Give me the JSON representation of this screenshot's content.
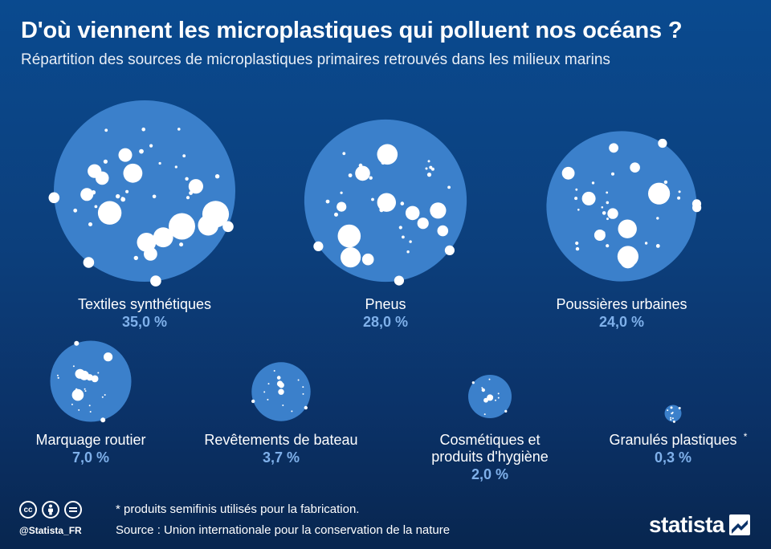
{
  "header": {
    "title": "D'où viennent les microplastiques qui polluent nos océans ?",
    "subtitle": "Répartition des sources de microplastiques primaires retrouvés dans les milieux marins"
  },
  "chart_data": {
    "type": "bubble",
    "unit": "%",
    "categories": [
      "Textiles synthétiques",
      "Pneus",
      "Poussières urbaines",
      "Marquage routier",
      "Revêtements de bateau",
      "Cosmétiques et produits d'hygiène",
      "Granulés plastiques"
    ],
    "values": [
      35.0,
      28.0,
      24.0,
      7.0,
      3.7,
      2.0,
      0.3
    ],
    "value_labels": [
      "35,0 %",
      "28,0 %",
      "24,0 %",
      "7,0 %",
      "3,7 %",
      "2,0 %",
      "0,3 %"
    ],
    "annotations": {
      "Granulés plastiques": "*"
    }
  },
  "colors": {
    "bubble": "#3b80cb",
    "dots": "#ffffff",
    "value_text": "#7fb0ea"
  },
  "footer": {
    "note": "* produits semifinis utilisés pour la fabrication.",
    "source": "Source : Union internationale pour la conservation de la nature",
    "handle": "@Statista_FR",
    "license_icons": [
      "cc-icon",
      "by-icon",
      "nd-icon"
    ],
    "logo": "statista"
  }
}
